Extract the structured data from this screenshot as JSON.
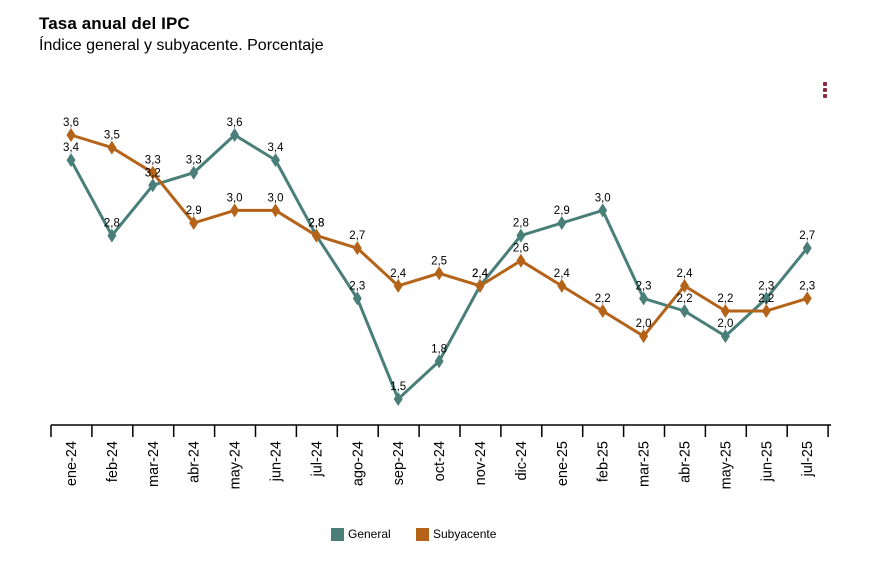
{
  "chart_data": {
    "type": "line",
    "title": "Tasa anual del IPC",
    "subtitle": "Índice general y subyacente. Porcentaje",
    "categories": [
      "ene-24",
      "feb-24",
      "mar-24",
      "abr-24",
      "may-24",
      "jun-24",
      "jul-24",
      "ago-24",
      "sep-24",
      "oct-24",
      "nov-24",
      "dic-24",
      "ene-25",
      "feb-25",
      "mar-25",
      "abr-25",
      "may-25",
      "jun-25",
      "jul-25"
    ],
    "series": [
      {
        "name": "General",
        "color": "#4a7f79",
        "values": [
          3.4,
          2.8,
          3.2,
          3.3,
          3.6,
          3.4,
          2.8,
          2.3,
          1.5,
          1.8,
          2.4,
          2.8,
          2.9,
          3.0,
          2.3,
          2.2,
          2.0,
          2.3,
          2.7
        ],
        "labels": [
          "3,4",
          "2,8",
          "3,2",
          "3,3",
          "3,6",
          "3,4",
          "2,8",
          "2,3",
          "1,5",
          "1,8",
          "2,4",
          "2,8",
          "2,9",
          "3,0",
          "2,3",
          "2,2",
          "2,0",
          "2,3",
          "2,7"
        ]
      },
      {
        "name": "Subyacente",
        "color": "#b46319",
        "values": [
          3.6,
          3.5,
          3.3,
          2.9,
          3.0,
          3.0,
          2.8,
          2.7,
          2.4,
          2.5,
          2.4,
          2.6,
          2.4,
          2.2,
          2.0,
          2.4,
          2.2,
          2.2,
          2.3
        ],
        "labels": [
          "3,6",
          "3,5",
          "3,3",
          "2,9",
          "3,0",
          "3,0",
          "2,8",
          "2,7",
          "2,4",
          "2,5",
          "2,4",
          "2,6",
          "2,4",
          "2,2",
          "2,0",
          "2,4",
          "2,2",
          "2,2",
          "2,3"
        ]
      }
    ],
    "xlabel": "",
    "ylabel": "",
    "ylim": [
      1.5,
      3.6
    ],
    "grid": false,
    "legend": "bottom-center"
  },
  "menu_icon": "context-menu-icon"
}
